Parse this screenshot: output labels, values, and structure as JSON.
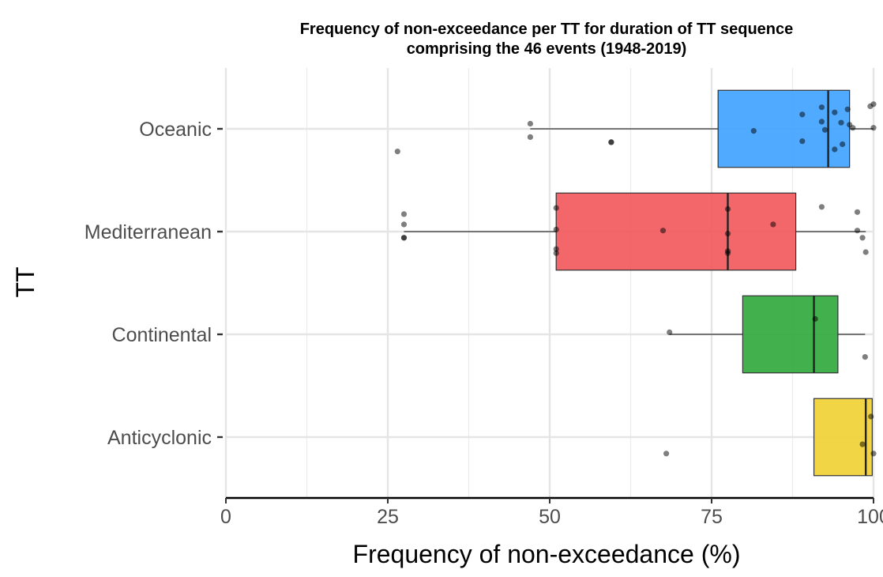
{
  "chart_data": {
    "type": "boxplot",
    "orientation": "horizontal",
    "title": [
      "Frequency of non-exceedance per TT for duration of TT sequence",
      "comprising the 46 events (1948-2019)"
    ],
    "xlabel": "Frequency of non-exceedance (%)",
    "ylabel": "TT",
    "xlim": [
      0,
      100
    ],
    "x_ticks": [
      0,
      25,
      50,
      75,
      100
    ],
    "grid": true,
    "legend": "none",
    "categories": [
      {
        "name": "Oceanic",
        "color": "#3da1ff",
        "box": {
          "whisker_low": 47,
          "q1": 76,
          "median": 93,
          "q3": 96.3,
          "whisker_high": 100
        },
        "points": [
          {
            "x": 26.5,
            "y": -0.22
          },
          {
            "x": 47,
            "y": 0.05
          },
          {
            "x": 47,
            "y": -0.08
          },
          {
            "x": 59.5,
            "y": -0.13
          },
          {
            "x": 59.5,
            "y": -0.13
          },
          {
            "x": 81.5,
            "y": -0.02
          },
          {
            "x": 89,
            "y": 0.14
          },
          {
            "x": 89,
            "y": -0.12
          },
          {
            "x": 92,
            "y": 0.21
          },
          {
            "x": 92,
            "y": 0.07
          },
          {
            "x": 92.5,
            "y": -0.01
          },
          {
            "x": 94,
            "y": 0.16
          },
          {
            "x": 94,
            "y": -0.2
          },
          {
            "x": 95,
            "y": 0.06
          },
          {
            "x": 95.2,
            "y": -0.15
          },
          {
            "x": 96,
            "y": 0.19
          },
          {
            "x": 96.3,
            "y": 0.04
          },
          {
            "x": 96.8,
            "y": 0.01
          },
          {
            "x": 99.5,
            "y": 0.22
          },
          {
            "x": 100,
            "y": 0.24
          },
          {
            "x": 100,
            "y": 0.01
          }
        ]
      },
      {
        "name": "Mediterranean",
        "color": "#f2555a",
        "box": {
          "whisker_low": 27.5,
          "q1": 51,
          "median": 77.5,
          "q3": 88,
          "whisker_high": 98.8
        },
        "points": [
          {
            "x": 27.5,
            "y": 0.17
          },
          {
            "x": 27.5,
            "y": 0.07
          },
          {
            "x": 27.5,
            "y": -0.06
          },
          {
            "x": 27.5,
            "y": -0.06
          },
          {
            "x": 51,
            "y": 0.23
          },
          {
            "x": 51,
            "y": 0.02
          },
          {
            "x": 51,
            "y": -0.17
          },
          {
            "x": 51,
            "y": -0.21
          },
          {
            "x": 67.5,
            "y": 0.01
          },
          {
            "x": 77.5,
            "y": 0.22
          },
          {
            "x": 77.5,
            "y": -0.02
          },
          {
            "x": 77.5,
            "y": -0.19
          },
          {
            "x": 77.5,
            "y": -0.21
          },
          {
            "x": 84.5,
            "y": 0.07
          },
          {
            "x": 92,
            "y": 0.24
          },
          {
            "x": 97.5,
            "y": 0.19
          },
          {
            "x": 97.5,
            "y": 0.01
          },
          {
            "x": 98.3,
            "y": -0.06
          },
          {
            "x": 98.8,
            "y": -0.2
          }
        ]
      },
      {
        "name": "Continental",
        "color": "#2ea83a",
        "box": {
          "whisker_low": 68.5,
          "q1": 79.8,
          "median": 90.8,
          "q3": 94.5,
          "whisker_high": 98.7
        },
        "points": [
          {
            "x": 68.5,
            "y": 0.02
          },
          {
            "x": 91,
            "y": 0.15
          },
          {
            "x": 98.7,
            "y": -0.22
          }
        ]
      },
      {
        "name": "Anticyclonic",
        "color": "#f0d030",
        "box": {
          "whisker_low": 90.8,
          "q1": 90.8,
          "median": 98.8,
          "q3": 99.8,
          "whisker_high": 99.8
        },
        "points": [
          {
            "x": 68,
            "y": -0.16
          },
          {
            "x": 98.3,
            "y": -0.07
          },
          {
            "x": 99.6,
            "y": 0.2
          },
          {
            "x": 100,
            "y": -0.16
          }
        ]
      }
    ]
  }
}
